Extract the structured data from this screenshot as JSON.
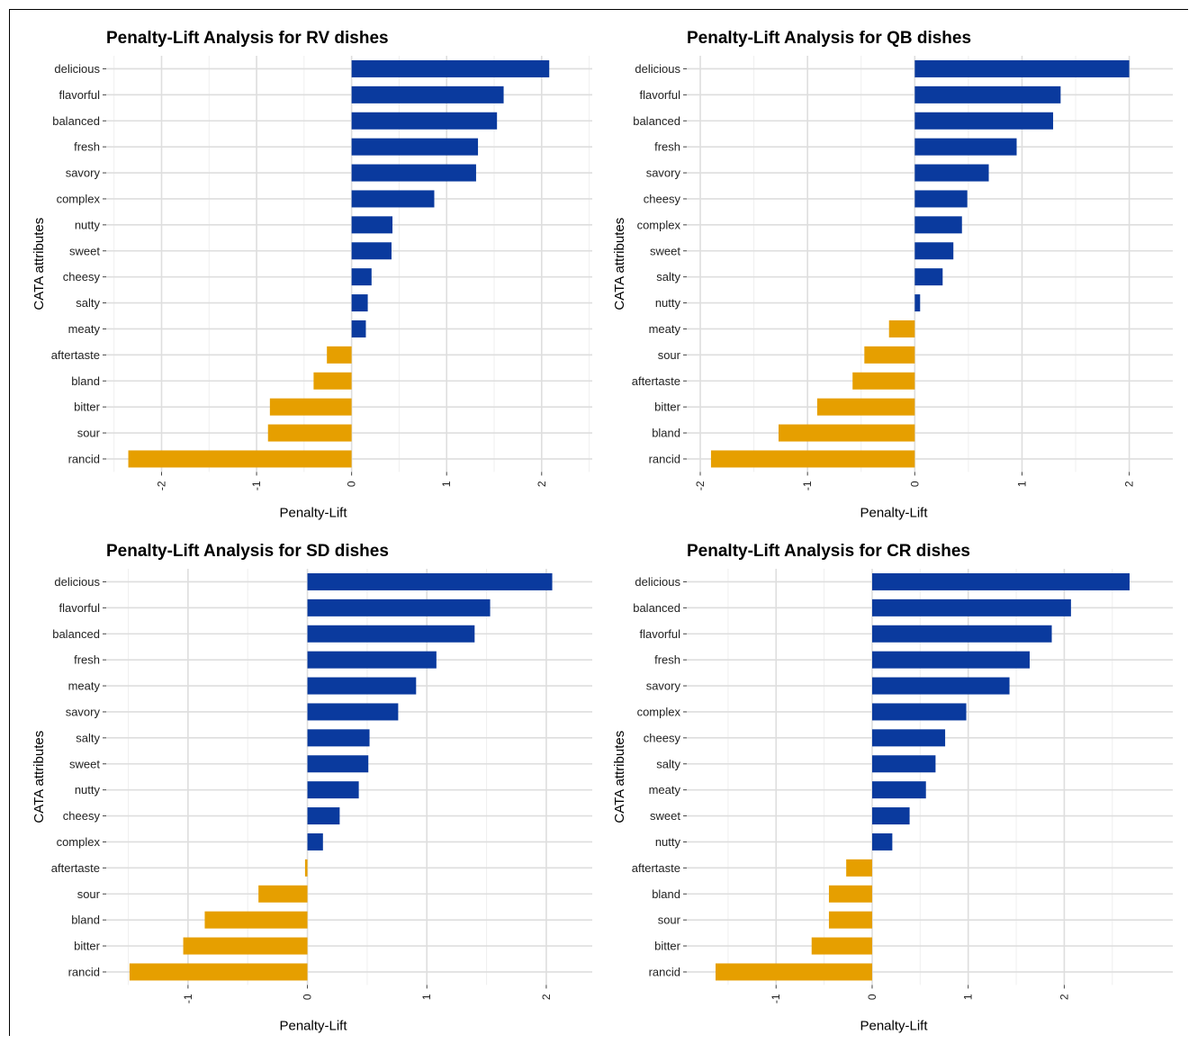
{
  "colors": {
    "positive": "#0a3a9e",
    "negative": "#e69f00",
    "grid_major": "#dedede",
    "grid_minor": "#efefef"
  },
  "chart_data": [
    {
      "type": "bar",
      "orientation": "horizontal",
      "title": "Penalty-Lift Analysis for RV dishes",
      "xlabel": "Penalty-Lift",
      "ylabel": "CATA attributes",
      "xlim": [
        -2.35,
        2.3
      ],
      "xticks": [
        -2,
        -1,
        0,
        1,
        2
      ],
      "xtick_labels": [
        "-2",
        "-1",
        "0",
        "1",
        "2"
      ],
      "categories": [
        "delicious",
        "flavorful",
        "balanced",
        "fresh",
        "savory",
        "complex",
        "nutty",
        "sweet",
        "cheesy",
        "salty",
        "meaty",
        "aftertaste",
        "bland",
        "bitter",
        "sour",
        "rancid"
      ],
      "values": [
        2.08,
        1.6,
        1.53,
        1.33,
        1.31,
        0.87,
        0.43,
        0.42,
        0.21,
        0.17,
        0.15,
        -0.26,
        -0.4,
        -0.86,
        -0.88,
        -2.35
      ]
    },
    {
      "type": "bar",
      "orientation": "horizontal",
      "title": "Penalty-Lift Analysis for QB dishes",
      "xlabel": "Penalty-Lift",
      "ylabel": "CATA attributes",
      "xlim": [
        -1.92,
        2.2
      ],
      "xticks": [
        -2,
        -1,
        0,
        1,
        2
      ],
      "xtick_labels": [
        "-2",
        "-1",
        "0",
        "1",
        "2"
      ],
      "categories": [
        "delicious",
        "flavorful",
        "balanced",
        "fresh",
        "savory",
        "cheesy",
        "complex",
        "sweet",
        "salty",
        "nutty",
        "meaty",
        "sour",
        "aftertaste",
        "bitter",
        "bland",
        "rancid"
      ],
      "values": [
        2.0,
        1.36,
        1.29,
        0.95,
        0.69,
        0.49,
        0.44,
        0.36,
        0.26,
        0.05,
        -0.24,
        -0.47,
        -0.58,
        -0.91,
        -1.27,
        -1.9
      ]
    },
    {
      "type": "bar",
      "orientation": "horizontal",
      "title": "Penalty-Lift Analysis for SD dishes",
      "xlabel": "Penalty-Lift",
      "ylabel": "CATA attributes",
      "xlim": [
        -1.5,
        2.2
      ],
      "xticks": [
        -1,
        0,
        1,
        2
      ],
      "xtick_labels": [
        "-1",
        "0",
        "1",
        "2"
      ],
      "categories": [
        "delicious",
        "flavorful",
        "balanced",
        "fresh",
        "meaty",
        "savory",
        "salty",
        "sweet",
        "nutty",
        "cheesy",
        "complex",
        "aftertaste",
        "sour",
        "bland",
        "bitter",
        "rancid"
      ],
      "values": [
        2.05,
        1.53,
        1.4,
        1.08,
        0.91,
        0.76,
        0.52,
        0.51,
        0.43,
        0.27,
        0.13,
        -0.02,
        -0.41,
        -0.86,
        -1.04,
        -1.49
      ]
    },
    {
      "type": "bar",
      "orientation": "horizontal",
      "title": "Penalty-Lift Analysis for CR dishes",
      "xlabel": "Penalty-Lift",
      "ylabel": "CATA attributes",
      "xlim": [
        -1.7,
        2.9
      ],
      "xticks": [
        -1,
        0,
        1,
        2
      ],
      "xtick_labels": [
        "-1",
        "0",
        "1",
        "2"
      ],
      "categories": [
        "delicious",
        "balanced",
        "flavorful",
        "fresh",
        "savory",
        "complex",
        "cheesy",
        "salty",
        "meaty",
        "sweet",
        "nutty",
        "aftertaste",
        "bland",
        "sour",
        "bitter",
        "rancid"
      ],
      "values": [
        2.68,
        2.07,
        1.87,
        1.64,
        1.43,
        0.98,
        0.76,
        0.66,
        0.56,
        0.39,
        0.21,
        -0.27,
        -0.45,
        -0.45,
        -0.63,
        -1.63
      ]
    }
  ]
}
